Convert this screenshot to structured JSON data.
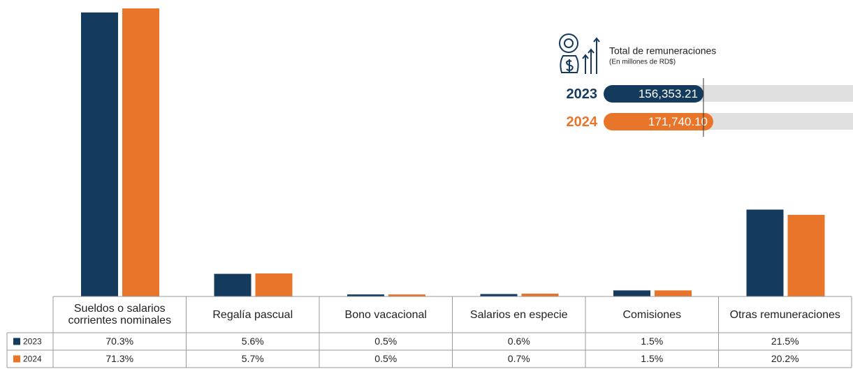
{
  "chart_data": [
    {
      "type": "bar",
      "categories": [
        "Sueldos o salarios corrientes nominales",
        "Regalía pascual",
        "Bono vacacional",
        "Salarios en especie",
        "Comisiones",
        "Otras remuneraciones"
      ],
      "series": [
        {
          "name": "2023",
          "color": "#143a5e",
          "values": [
            70.3,
            5.6,
            0.5,
            0.6,
            1.5,
            21.5
          ],
          "value_labels": [
            "70.3%",
            "5.6%",
            "0.5%",
            "0.6%",
            "1.5%",
            "21.5%"
          ]
        },
        {
          "name": "2024",
          "color": "#e8752a",
          "values": [
            71.3,
            5.7,
            0.5,
            0.7,
            1.5,
            20.2
          ],
          "value_labels": [
            "71.3%",
            "5.7%",
            "0.5%",
            "0.7%",
            "1.5%",
            "20.2%"
          ]
        }
      ],
      "ylim": [
        0,
        72
      ]
    },
    {
      "type": "hbar",
      "title": "Total de remuneraciones",
      "subtitle": "(En millones de RD$)",
      "categories": [
        "2023",
        "2024"
      ],
      "values": [
        156353.21,
        171740.1
      ],
      "value_labels": [
        "156,353.21",
        "171,740.10"
      ],
      "colors": [
        "#143a5e",
        "#e8752a"
      ]
    }
  ]
}
